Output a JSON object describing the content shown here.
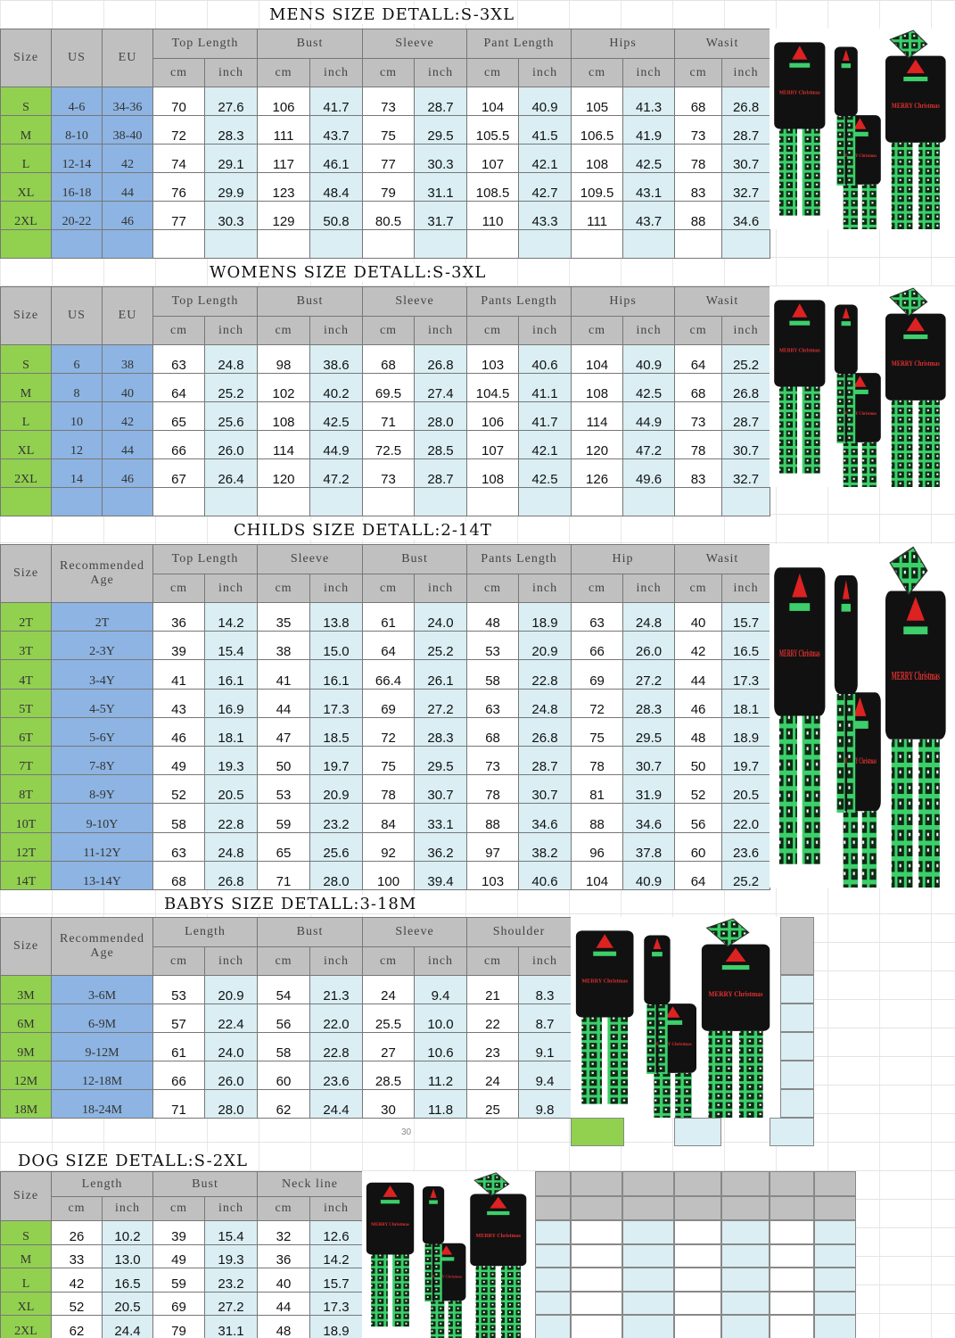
{
  "colors": {
    "header": "#c0c0c0",
    "size_col": "#92d050",
    "us_eu_col": "#8db4e2",
    "inch_col": "#daeef3"
  },
  "mens": {
    "title": "MENS SIZE DETALL:S-3XL",
    "fixed": [
      "Size",
      "US",
      "EU"
    ],
    "groups": [
      "Top Length",
      "Bust",
      "Sleeve",
      "Pant Length",
      "Hips",
      "Wasit"
    ],
    "sub": [
      "cm",
      "inch"
    ],
    "rows": [
      [
        "S",
        "4-6",
        "34-36",
        "70",
        "27.6",
        "106",
        "41.7",
        "73",
        "28.7",
        "104",
        "40.9",
        "105",
        "41.3",
        "68",
        "26.8"
      ],
      [
        "M",
        "8-10",
        "38-40",
        "72",
        "28.3",
        "111",
        "43.7",
        "75",
        "29.5",
        "105.5",
        "41.5",
        "106.5",
        "41.9",
        "73",
        "28.7"
      ],
      [
        "L",
        "12-14",
        "42",
        "74",
        "29.1",
        "117",
        "46.1",
        "77",
        "30.3",
        "107",
        "42.1",
        "108",
        "42.5",
        "78",
        "30.7"
      ],
      [
        "XL",
        "16-18",
        "44",
        "76",
        "29.9",
        "123",
        "48.4",
        "79",
        "31.1",
        "108.5",
        "42.7",
        "109.5",
        "43.1",
        "83",
        "32.7"
      ],
      [
        "2XL",
        "20-22",
        "46",
        "77",
        "30.3",
        "129",
        "50.8",
        "80.5",
        "31.7",
        "110",
        "43.3",
        "111",
        "43.7",
        "88",
        "34.6"
      ]
    ]
  },
  "womens": {
    "title": "WOMENS SIZE DETALL:S-3XL",
    "fixed": [
      "Size",
      "US",
      "EU"
    ],
    "groups": [
      "Top Length",
      "Bust",
      "Sleeve",
      "Pants Length",
      "Hips",
      "Wasit"
    ],
    "sub": [
      "cm",
      "inch"
    ],
    "rows": [
      [
        "S",
        "6",
        "38",
        "63",
        "24.8",
        "98",
        "38.6",
        "68",
        "26.8",
        "103",
        "40.6",
        "104",
        "40.9",
        "64",
        "25.2"
      ],
      [
        "M",
        "8",
        "40",
        "64",
        "25.2",
        "102",
        "40.2",
        "69.5",
        "27.4",
        "104.5",
        "41.1",
        "108",
        "42.5",
        "68",
        "26.8"
      ],
      [
        "L",
        "10",
        "42",
        "65",
        "25.6",
        "108",
        "42.5",
        "71",
        "28.0",
        "106",
        "41.7",
        "114",
        "44.9",
        "73",
        "28.7"
      ],
      [
        "XL",
        "12",
        "44",
        "66",
        "26.0",
        "114",
        "44.9",
        "72.5",
        "28.5",
        "107",
        "42.1",
        "120",
        "47.2",
        "78",
        "30.7"
      ],
      [
        "2XL",
        "14",
        "46",
        "67",
        "26.4",
        "120",
        "47.2",
        "73",
        "28.7",
        "108",
        "42.5",
        "126",
        "49.6",
        "83",
        "32.7"
      ]
    ]
  },
  "childs": {
    "title": "CHILDS SIZE DETALL:2-14T",
    "fixed": [
      "Size",
      "Recommended Age"
    ],
    "groups": [
      "Top Length",
      "Sleeve",
      "Bust",
      "Pants Length",
      "Hip",
      "Wasit"
    ],
    "sub": [
      "cm",
      "inch"
    ],
    "rows": [
      [
        "2T",
        "2T",
        "36",
        "14.2",
        "35",
        "13.8",
        "61",
        "24.0",
        "48",
        "18.9",
        "63",
        "24.8",
        "40",
        "15.7"
      ],
      [
        "3T",
        "2-3Y",
        "39",
        "15.4",
        "38",
        "15.0",
        "64",
        "25.2",
        "53",
        "20.9",
        "66",
        "26.0",
        "42",
        "16.5"
      ],
      [
        "4T",
        "3-4Y",
        "41",
        "16.1",
        "41",
        "16.1",
        "66.4",
        "26.1",
        "58",
        "22.8",
        "69",
        "27.2",
        "44",
        "17.3"
      ],
      [
        "5T",
        "4-5Y",
        "43",
        "16.9",
        "44",
        "17.3",
        "69",
        "27.2",
        "63",
        "24.8",
        "72",
        "28.3",
        "46",
        "18.1"
      ],
      [
        "6T",
        "5-6Y",
        "46",
        "18.1",
        "47",
        "18.5",
        "72",
        "28.3",
        "68",
        "26.8",
        "75",
        "29.5",
        "48",
        "18.9"
      ],
      [
        "7T",
        "7-8Y",
        "49",
        "19.3",
        "50",
        "19.7",
        "75",
        "29.5",
        "73",
        "28.7",
        "78",
        "30.7",
        "50",
        "19.7"
      ],
      [
        "8T",
        "8-9Y",
        "52",
        "20.5",
        "53",
        "20.9",
        "78",
        "30.7",
        "78",
        "30.7",
        "81",
        "31.9",
        "52",
        "20.5"
      ],
      [
        "10T",
        "9-10Y",
        "58",
        "22.8",
        "59",
        "23.2",
        "84",
        "33.1",
        "88",
        "34.6",
        "88",
        "34.6",
        "56",
        "22.0"
      ],
      [
        "12T",
        "11-12Y",
        "63",
        "24.8",
        "65",
        "25.6",
        "92",
        "36.2",
        "97",
        "38.2",
        "96",
        "37.8",
        "60",
        "23.6"
      ],
      [
        "14T",
        "13-14Y",
        "68",
        "26.8",
        "71",
        "28.0",
        "100",
        "39.4",
        "103",
        "40.6",
        "104",
        "40.9",
        "64",
        "25.2"
      ]
    ]
  },
  "babys": {
    "title": "BABYS SIZE DETALL:3-18M",
    "fixed": [
      "Size",
      "Recommended Age"
    ],
    "groups": [
      "Length",
      "Bust",
      "Sleeve",
      "Shoulder"
    ],
    "sub": [
      "cm",
      "inch"
    ],
    "rows": [
      [
        "3M",
        "3-6M",
        "53",
        "20.9",
        "54",
        "21.3",
        "24",
        "9.4",
        "21",
        "8.3"
      ],
      [
        "6M",
        "6-9M",
        "57",
        "22.4",
        "56",
        "22.0",
        "25.5",
        "10.0",
        "22",
        "8.7"
      ],
      [
        "9M",
        "9-12M",
        "61",
        "24.0",
        "58",
        "22.8",
        "27",
        "10.6",
        "23",
        "9.1"
      ],
      [
        "12M",
        "12-18M",
        "66",
        "26.0",
        "60",
        "23.6",
        "28.5",
        "11.2",
        "24",
        "9.4"
      ],
      [
        "18M",
        "18-24M",
        "71",
        "28.0",
        "62",
        "24.4",
        "30",
        "11.8",
        "25",
        "9.8"
      ]
    ],
    "note": "30"
  },
  "dog": {
    "title": "DOG SIZE DETALL:S-2XL",
    "fixed": [
      "Size"
    ],
    "groups": [
      "Length",
      "Bust",
      "Neck line"
    ],
    "sub": [
      "cm",
      "inch"
    ],
    "rows": [
      [
        "S",
        "26",
        "10.2",
        "39",
        "15.4",
        "32",
        "12.6"
      ],
      [
        "M",
        "33",
        "13.0",
        "49",
        "19.3",
        "36",
        "14.2"
      ],
      [
        "L",
        "42",
        "16.5",
        "59",
        "23.2",
        "40",
        "15.7"
      ],
      [
        "XL",
        "52",
        "20.5",
        "69",
        "27.2",
        "44",
        "17.3"
      ],
      [
        "2XL",
        "62",
        "24.4",
        "79",
        "31.1",
        "48",
        "18.9"
      ]
    ]
  },
  "product_image": {
    "shirt_text": "MERRY Christmas",
    "icon": "family-pajamas-image"
  }
}
